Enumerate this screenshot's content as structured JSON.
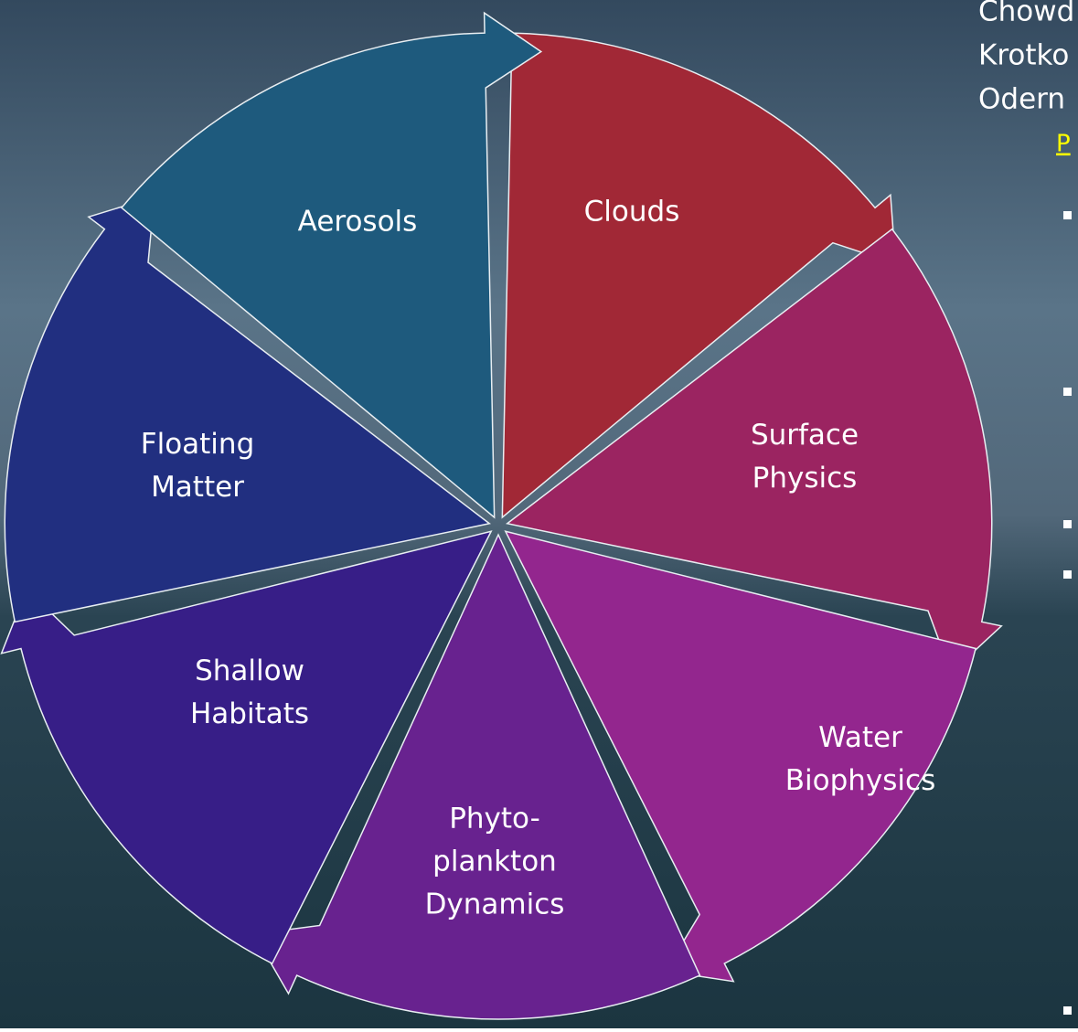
{
  "nodes": [
    {
      "label": [
        "Clouds"
      ],
      "color": "#a12836"
    },
    {
      "label": [
        "Surface",
        "Physics"
      ],
      "color": "#9b2461"
    },
    {
      "label": [
        "Water",
        "Biophysics"
      ],
      "color": "#93268e"
    },
    {
      "label": [
        "Phyto-",
        "plankton",
        "Dynamics"
      ],
      "color": "#68228f"
    },
    {
      "label": [
        "Shallow",
        "Habitats"
      ],
      "color": "#371e87"
    },
    {
      "label": [
        "Floating",
        "Matter"
      ],
      "color": "#212f80"
    },
    {
      "label": [
        "Aerosols"
      ],
      "color": "#1e5a7d"
    }
  ],
  "side_text": {
    "lines": [
      "Chowd",
      "Krotko",
      "Odern"
    ],
    "heading": "P"
  }
}
